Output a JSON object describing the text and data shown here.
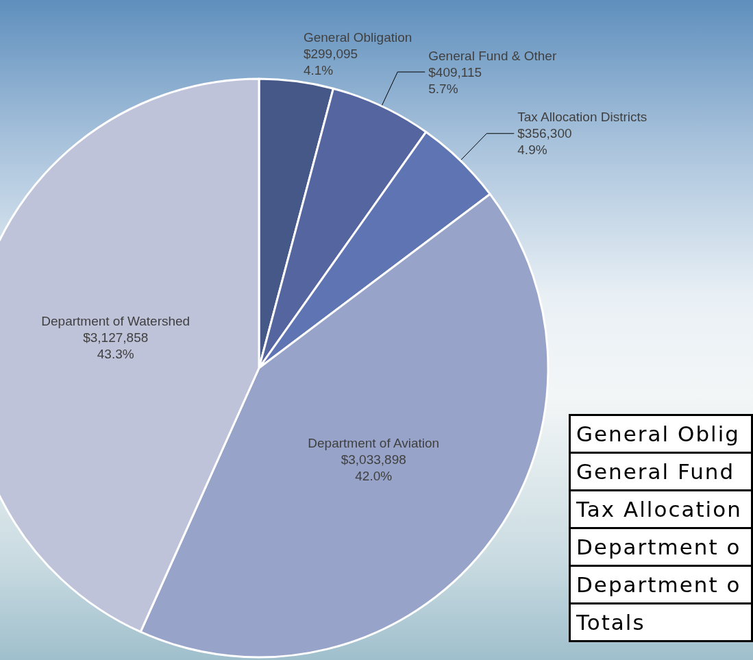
{
  "chart_data": {
    "type": "pie",
    "categories": [
      "General Obligation",
      "General Fund & Other",
      "Tax Allocation Districts",
      "Department of Aviation",
      "Department of Watershed"
    ],
    "values": [
      299095,
      409115,
      356300,
      3033898,
      3127858
    ],
    "value_labels": [
      "$299,095\n4.1%",
      "$409,115\n5.7%",
      "$356,300\n4.9%",
      "$3,033,898\n42.0%",
      "$3,127,858\n43.3%"
    ],
    "colors": [
      "#465888",
      "#5465a0",
      "#5f74b3",
      "#97a3c8",
      "#bec3da"
    ],
    "annotations": [
      "General Oblig",
      "General Fund",
      "Tax Allocation",
      "Department o",
      "Department o",
      "Totals"
    ],
    "legend": false
  }
}
